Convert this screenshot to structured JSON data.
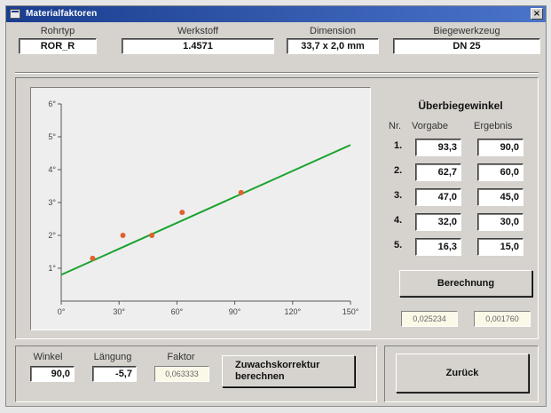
{
  "window": {
    "title": "Materialfaktoren",
    "close_glyph": "×"
  },
  "header": {
    "rohrtyp": {
      "label": "Rohrtyp",
      "value": "ROR_R"
    },
    "werkstoff": {
      "label": "Werkstoff",
      "value": "1.4571"
    },
    "dimension": {
      "label": "Dimension",
      "value": "33,7 x 2,0 mm"
    },
    "biegewerkzeug": {
      "label": "Biegewerkzeug",
      "value": "DN 25"
    }
  },
  "ueberbiegewinkel": {
    "title": "Überbiegewinkel",
    "col_nr": "Nr.",
    "col_vorgabe": "Vorgabe",
    "col_ergebnis": "Ergebnis",
    "rows": [
      {
        "nr": "1.",
        "vorgabe": "93,3",
        "ergebnis": "90,0"
      },
      {
        "nr": "2.",
        "vorgabe": "62,7",
        "ergebnis": "60,0"
      },
      {
        "nr": "3.",
        "vorgabe": "47,0",
        "ergebnis": "45,0"
      },
      {
        "nr": "4.",
        "vorgabe": "32,0",
        "ergebnis": "30,0"
      },
      {
        "nr": "5.",
        "vorgabe": "16,3",
        "ergebnis": "15,0"
      }
    ],
    "berechnung_label": "Berechnung",
    "result_a": "0,025234",
    "result_b": "0,001760"
  },
  "bottom": {
    "winkel": {
      "label": "Winkel",
      "value": "90,0"
    },
    "laengung": {
      "label": "Längung",
      "value": "-5,7"
    },
    "faktor": {
      "label": "Faktor",
      "value": "0,063333"
    },
    "zuwachs_label_1": "Zuwachskorrektur",
    "zuwachs_label_2": "berechnen",
    "zurueck_label": "Zurück"
  },
  "chart_data": {
    "type": "scatter",
    "xlim": [
      0,
      150
    ],
    "ylim": [
      0,
      6
    ],
    "x_ticks": [
      0,
      30,
      60,
      90,
      120,
      150
    ],
    "y_ticks": [
      1,
      2,
      3,
      4,
      5,
      6
    ],
    "x_tick_labels": [
      "0°",
      "30°",
      "60°",
      "90°",
      "120°",
      "150°"
    ],
    "y_tick_labels": [
      "1°",
      "2°",
      "3°",
      "4°",
      "5°",
      "6°"
    ],
    "points": [
      {
        "x": 16.3,
        "y": 1.3
      },
      {
        "x": 32.0,
        "y": 2.0
      },
      {
        "x": 47.0,
        "y": 2.0
      },
      {
        "x": 62.7,
        "y": 2.7
      },
      {
        "x": 93.3,
        "y": 3.3
      }
    ],
    "fit_line": {
      "x": [
        0,
        150
      ],
      "y": [
        0.8,
        4.75
      ]
    },
    "point_color": "#e06030",
    "line_color": "#19a32e",
    "grid": false
  }
}
